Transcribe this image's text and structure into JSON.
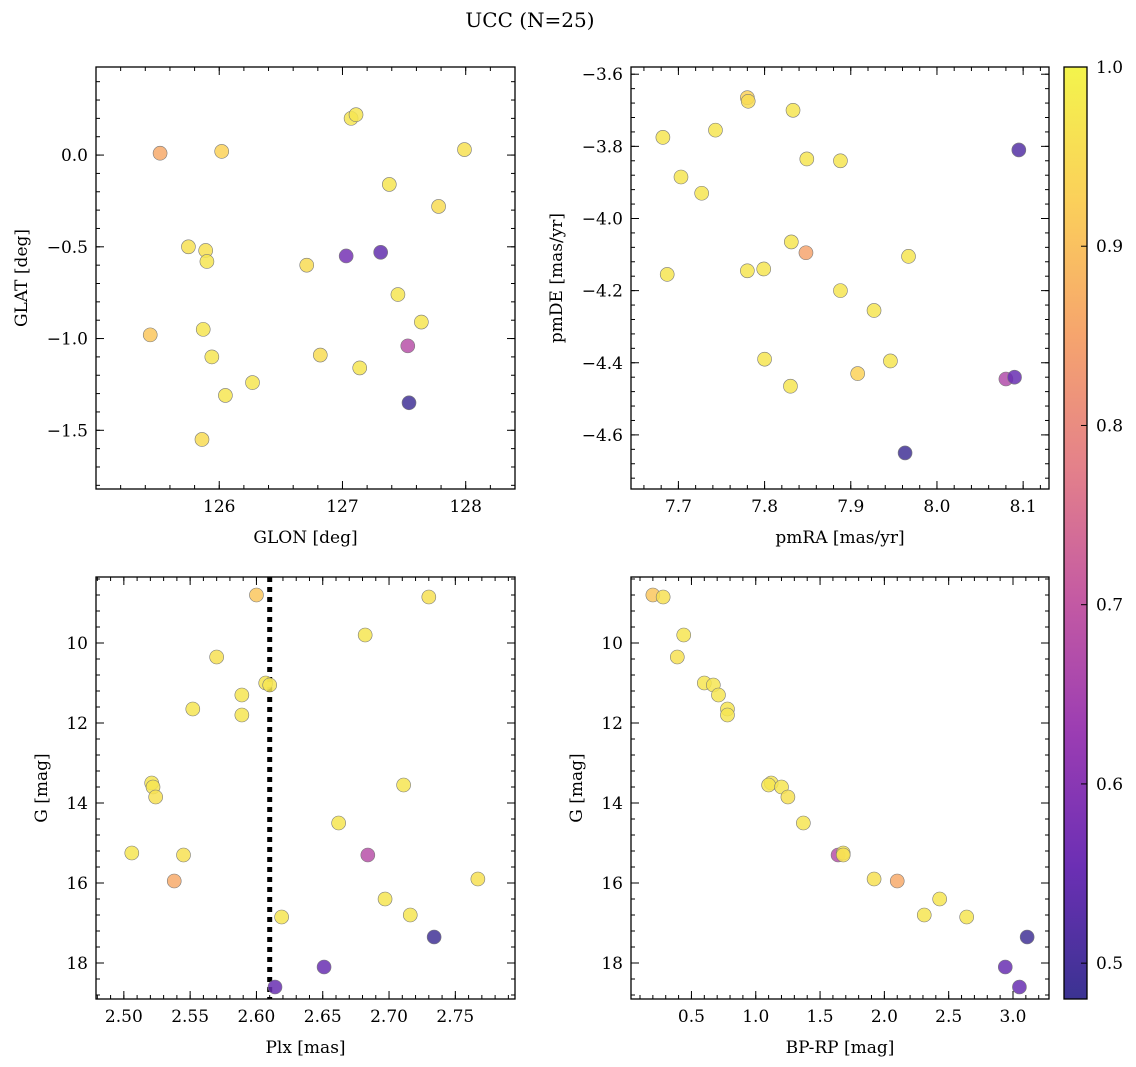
{
  "figure": {
    "title": "UCC (N=25)"
  },
  "colorbar": {
    "range": [
      0.48,
      1.0
    ],
    "ticks": [
      0.5,
      0.6,
      0.7,
      0.8,
      0.9,
      1.0
    ],
    "tick_labels": [
      "0.5",
      "0.6",
      "0.7",
      "0.8",
      "0.9",
      "1.0"
    ],
    "colormap": "plasma",
    "stops": [
      "#3b3392",
      "#6c2fb4",
      "#9b3db3",
      "#c45aa3",
      "#e4818a",
      "#f6a56d",
      "#fbd05a",
      "#f3f44c"
    ]
  },
  "chart_data": [
    {
      "type": "scatter",
      "xlabel": "GLON [deg]",
      "ylabel": "GLAT [deg]",
      "xlim": [
        125.0,
        128.4
      ],
      "ylim": [
        -1.82,
        0.48
      ],
      "invert_y": false,
      "xticks": [
        126,
        127,
        128
      ],
      "xtick_labels": [
        "126",
        "127",
        "128"
      ],
      "yticks": [
        0.0,
        -0.5,
        -1.0,
        -1.5
      ],
      "ytick_labels": [
        "0.0",
        "−0.5",
        "−1.0",
        "−1.5"
      ],
      "x": [
        125.52,
        126.02,
        127.07,
        127.11,
        127.99,
        127.38,
        127.78,
        125.75,
        125.89,
        125.9,
        126.71,
        127.03,
        127.31,
        127.45,
        127.64,
        125.44,
        125.87,
        125.94,
        127.53,
        126.82,
        127.14,
        126.27,
        126.05,
        127.54,
        125.86
      ],
      "y": [
        0.01,
        0.02,
        0.2,
        0.22,
        0.03,
        -0.16,
        -0.28,
        -0.5,
        -0.52,
        -0.58,
        -0.6,
        -0.55,
        -0.53,
        -0.76,
        -0.91,
        -0.98,
        -0.95,
        -1.1,
        -1.04,
        -1.09,
        -1.16,
        -1.24,
        -1.31,
        -1.35,
        -1.55
      ],
      "color_values": [
        0.86,
        0.93,
        0.97,
        0.97,
        0.96,
        0.97,
        0.95,
        0.96,
        0.96,
        0.97,
        0.95,
        0.57,
        0.54,
        0.97,
        0.97,
        0.91,
        0.97,
        0.97,
        0.68,
        0.95,
        0.97,
        0.97,
        0.97,
        0.49,
        0.95
      ]
    },
    {
      "type": "scatter",
      "xlabel": "pmRA [mas/yr]",
      "ylabel": "pmDE [mas/yr]",
      "xlim": [
        7.645,
        8.13
      ],
      "ylim": [
        -4.75,
        -3.58
      ],
      "invert_y": false,
      "xticks": [
        7.7,
        7.8,
        7.9,
        8.0,
        8.1
      ],
      "xtick_labels": [
        "7.7",
        "7.8",
        "7.9",
        "8.0",
        "8.1"
      ],
      "yticks": [
        -3.6,
        -3.8,
        -4.0,
        -4.2,
        -4.4,
        -4.6
      ],
      "ytick_labels": [
        "−3.6",
        "−3.8",
        "−4.0",
        "−4.2",
        "−4.4",
        "−4.6"
      ],
      "x": [
        7.78,
        7.781,
        7.833,
        7.682,
        7.743,
        7.849,
        7.888,
        7.703,
        7.727,
        8.095,
        7.831,
        7.848,
        7.967,
        7.78,
        7.799,
        7.687,
        7.888,
        7.927,
        7.8,
        7.946,
        7.908,
        7.83,
        8.08,
        8.09,
        7.963
      ],
      "y": [
        -3.665,
        -3.675,
        -3.7,
        -3.775,
        -3.755,
        -3.835,
        -3.84,
        -3.885,
        -3.93,
        -3.81,
        -4.065,
        -4.095,
        -4.105,
        -4.145,
        -4.14,
        -4.155,
        -4.2,
        -4.255,
        -4.39,
        -4.395,
        -4.43,
        -4.465,
        -4.445,
        -4.44,
        -4.65
      ],
      "color_values": [
        0.93,
        0.95,
        0.97,
        0.97,
        0.97,
        0.97,
        0.97,
        0.97,
        0.97,
        0.52,
        0.97,
        0.85,
        0.97,
        0.97,
        0.97,
        0.97,
        0.97,
        0.97,
        0.97,
        0.97,
        0.93,
        0.97,
        0.67,
        0.55,
        0.49
      ]
    },
    {
      "type": "scatter",
      "xlabel": "Plx [mas]",
      "ylabel": "G [mag]",
      "xlim": [
        2.479,
        2.795
      ],
      "ylim": [
        18.9,
        8.35
      ],
      "invert_y": true,
      "xticks": [
        2.5,
        2.55,
        2.6,
        2.65,
        2.7,
        2.75
      ],
      "xtick_labels": [
        "2.50",
        "2.55",
        "2.60",
        "2.65",
        "2.70",
        "2.75"
      ],
      "yticks": [
        10,
        12,
        14,
        16,
        18
      ],
      "ytick_labels": [
        "10",
        "12",
        "14",
        "16",
        "18"
      ],
      "vline": 2.61,
      "x": [
        2.6,
        2.73,
        2.682,
        2.57,
        2.607,
        2.61,
        2.589,
        2.552,
        2.589,
        2.521,
        2.522,
        2.524,
        2.711,
        2.662,
        2.506,
        2.545,
        2.684,
        2.538,
        2.767,
        2.697,
        2.619,
        2.716,
        2.734,
        2.651,
        2.614
      ],
      "y": [
        8.8,
        8.85,
        9.8,
        10.35,
        11.0,
        11.05,
        11.3,
        11.65,
        11.8,
        13.5,
        13.6,
        13.85,
        13.55,
        14.5,
        15.25,
        15.3,
        15.3,
        15.95,
        15.9,
        16.4,
        16.85,
        16.8,
        17.35,
        18.1,
        18.6
      ],
      "color_values": [
        0.91,
        0.96,
        0.97,
        0.96,
        0.97,
        0.97,
        0.97,
        0.97,
        0.97,
        0.97,
        0.97,
        0.96,
        0.97,
        0.97,
        0.97,
        0.96,
        0.68,
        0.86,
        0.96,
        0.97,
        0.97,
        0.97,
        0.49,
        0.55,
        0.55
      ]
    },
    {
      "type": "scatter",
      "xlabel": "BP-RP [mag]",
      "ylabel": "G [mag]",
      "xlim": [
        0.03,
        3.28
      ],
      "ylim": [
        18.9,
        8.35
      ],
      "invert_y": true,
      "xticks": [
        0.5,
        1.0,
        1.5,
        2.0,
        2.5,
        3.0
      ],
      "xtick_labels": [
        "0.5",
        "1.0",
        "1.5",
        "2.0",
        "2.5",
        "3.0"
      ],
      "yticks": [
        10,
        12,
        14,
        16,
        18
      ],
      "ytick_labels": [
        "10",
        "12",
        "14",
        "16",
        "18"
      ],
      "x": [
        0.2,
        0.28,
        0.44,
        0.39,
        0.6,
        0.67,
        0.71,
        0.78,
        0.78,
        1.12,
        1.1,
        1.2,
        1.25,
        1.37,
        1.64,
        1.68,
        1.68,
        1.92,
        2.1,
        2.43,
        2.31,
        2.64,
        3.11,
        2.94,
        3.05
      ],
      "y": [
        8.8,
        8.85,
        9.8,
        10.35,
        11.0,
        11.05,
        11.3,
        11.65,
        11.8,
        13.5,
        13.55,
        13.6,
        13.85,
        14.5,
        15.3,
        15.25,
        15.3,
        15.9,
        15.95,
        16.4,
        16.8,
        16.85,
        17.35,
        18.1,
        18.6
      ],
      "color_values": [
        0.91,
        0.96,
        0.97,
        0.96,
        0.97,
        0.97,
        0.97,
        0.97,
        0.97,
        0.97,
        0.97,
        0.97,
        0.96,
        0.97,
        0.68,
        0.97,
        0.96,
        0.96,
        0.86,
        0.97,
        0.97,
        0.97,
        0.49,
        0.55,
        0.55
      ]
    }
  ]
}
